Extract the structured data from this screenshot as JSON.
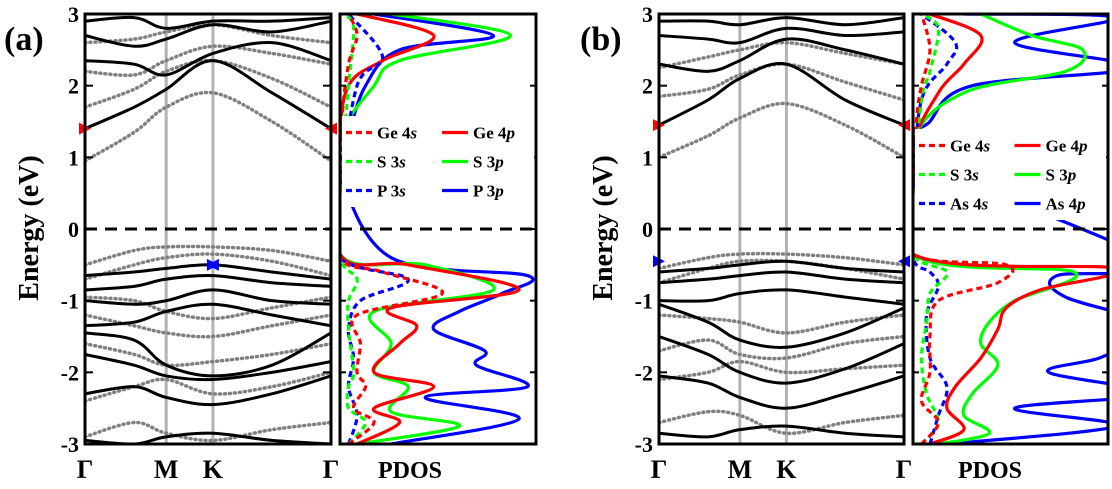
{
  "chart_data": [
    {
      "type": "line",
      "panel": "(a)",
      "ylabel": "Energy (eV)",
      "ylim": [
        -3,
        3
      ],
      "yticks": [
        "-3",
        "-2",
        "-1",
        "0",
        "1",
        "2",
        "3"
      ],
      "kpath": [
        "Γ",
        "M",
        "K",
        "Γ"
      ],
      "fermi_level": 0,
      "band_styles": {
        "solid": "#000000",
        "dotted": "#808080",
        "vbm_cbm_marker": "#ff0000",
        "vbm_marker": "#0000ff"
      },
      "solid_bands": [
        {
          "values": [
            -2.95,
            -3.0,
            -2.9,
            -2.85,
            -2.95,
            -3.0
          ]
        },
        {
          "values": [
            -2.3,
            -2.2,
            -2.35,
            -2.45,
            -2.3,
            -2.05
          ]
        },
        {
          "values": [
            -1.75,
            -1.9,
            -2.05,
            -2.1,
            -2.0,
            -1.85
          ]
        },
        {
          "values": [
            -1.45,
            -1.55,
            -1.9,
            -2.05,
            -1.9,
            -1.45
          ]
        },
        {
          "values": [
            -1.35,
            -1.3,
            -1.15,
            -1.05,
            -1.2,
            -1.35
          ]
        },
        {
          "values": [
            -1.0,
            -1.05,
            -1.0,
            -0.85,
            -1.0,
            -1.05
          ]
        },
        {
          "values": [
            -0.85,
            -0.8,
            -0.7,
            -0.65,
            -0.75,
            -0.8
          ]
        },
        {
          "values": [
            -0.65,
            -0.6,
            -0.55,
            -0.5,
            -0.6,
            -0.7
          ]
        },
        {
          "values": [
            1.4,
            1.7,
            1.95,
            2.35,
            1.9,
            1.4
          ]
        },
        {
          "values": [
            2.35,
            2.3,
            2.15,
            2.45,
            2.6,
            2.35
          ]
        },
        {
          "values": [
            2.7,
            2.55,
            2.65,
            2.85,
            2.75,
            2.9
          ]
        },
        {
          "values": [
            2.9,
            2.95,
            2.8,
            2.9,
            2.9,
            2.95
          ]
        }
      ],
      "dotted_bands": [
        {
          "values": [
            -2.9,
            -2.7,
            -2.85,
            -2.95,
            -2.8,
            -2.7
          ]
        },
        {
          "values": [
            -2.4,
            -2.2,
            -2.1,
            -2.3,
            -2.2,
            -2.0
          ]
        },
        {
          "values": [
            -1.6,
            -1.75,
            -1.9,
            -1.85,
            -1.75,
            -1.6
          ]
        },
        {
          "values": [
            -1.2,
            -1.35,
            -1.45,
            -1.5,
            -1.35,
            -1.2
          ]
        },
        {
          "values": [
            -0.95,
            -1.0,
            -1.15,
            -1.25,
            -1.1,
            -0.95
          ]
        },
        {
          "values": [
            -0.7,
            -0.5,
            -0.4,
            -0.35,
            -0.45,
            -0.65
          ]
        },
        {
          "values": [
            -0.5,
            -0.3,
            -0.25,
            -0.25,
            -0.3,
            -0.45
          ]
        },
        {
          "values": [
            0.95,
            1.35,
            1.7,
            1.9,
            1.5,
            0.95
          ]
        },
        {
          "values": [
            1.7,
            1.95,
            2.2,
            2.35,
            2.1,
            1.7
          ]
        },
        {
          "values": [
            2.2,
            2.15,
            2.35,
            2.55,
            2.45,
            2.3
          ]
        },
        {
          "values": [
            2.6,
            2.65,
            2.75,
            2.85,
            2.7,
            2.6
          ]
        }
      ],
      "cbm": {
        "k": "Γ",
        "energy": 1.4
      },
      "vbm": {
        "k": "K",
        "energy": -0.5
      }
    },
    {
      "type": "line",
      "panel": "(a)",
      "xlabel": "PDOS",
      "ylim": [
        -3,
        3
      ],
      "legend": [
        {
          "label_pre": "Ge 4",
          "label_italic": "s",
          "color": "#ff0000",
          "dashed": true
        },
        {
          "label_pre": "Ge 4",
          "label_italic": "p",
          "color": "#ff0000",
          "dashed": false
        },
        {
          "label_pre": "S 3",
          "label_italic": "s",
          "color": "#00ff00",
          "dashed": true
        },
        {
          "label_pre": "S 3",
          "label_italic": "p",
          "color": "#00ff00",
          "dashed": false
        },
        {
          "label_pre": "P 3",
          "label_italic": "s",
          "color": "#0000ff",
          "dashed": true
        },
        {
          "label_pre": "P 3",
          "label_italic": "p",
          "color": "#0000ff",
          "dashed": false
        }
      ],
      "series": [
        {
          "name": "Ge 4s",
          "energy": [
            -3,
            -2.7,
            -2.5,
            -2.2,
            -2.0,
            -1.6,
            -1.2,
            -0.9,
            -0.6,
            -0.4,
            0.5,
            1.5,
            2.3,
            2.7,
            3
          ],
          "dos": [
            0.05,
            0.2,
            0.08,
            0.15,
            0.1,
            0.12,
            0.1,
            0.6,
            0.25,
            0.0,
            0.0,
            0.01,
            0.05,
            0.1,
            0.05
          ]
        },
        {
          "name": "Ge 4p",
          "energy": [
            -3,
            -2.7,
            -2.5,
            -2.2,
            -2.0,
            -1.6,
            -1.35,
            -1.1,
            -0.85,
            -0.5,
            -0.35,
            1.2,
            2.0,
            2.35,
            2.7,
            3
          ],
          "dos": [
            0.1,
            0.35,
            0.2,
            0.55,
            0.2,
            0.35,
            0.45,
            0.3,
            1.05,
            0.4,
            0.0,
            0.0,
            0.05,
            0.25,
            0.55,
            0.1
          ]
        },
        {
          "name": "S 3s",
          "energy": [
            -3,
            -2.7,
            -2.5,
            -2.2,
            -2.0,
            -1.4,
            -1.0,
            -0.7,
            -0.4,
            0.5,
            2.0,
            2.8,
            3
          ],
          "dos": [
            0.05,
            0.15,
            0.05,
            0.05,
            0.08,
            0.05,
            0.05,
            0.1,
            0.0,
            0.0,
            0.05,
            0.08,
            0.02
          ]
        },
        {
          "name": "S 3p",
          "energy": [
            -3,
            -2.75,
            -2.55,
            -2.2,
            -2.0,
            -1.6,
            -1.15,
            -0.85,
            -0.5,
            -0.35,
            1.2,
            2.0,
            2.35,
            2.7,
            3
          ],
          "dos": [
            0.1,
            0.7,
            0.3,
            0.4,
            0.2,
            0.3,
            0.2,
            0.9,
            0.5,
            0.0,
            0.0,
            0.2,
            0.35,
            1.0,
            0.3
          ]
        },
        {
          "name": "P 3s",
          "energy": [
            -3,
            -2.6,
            -2.2,
            -1.8,
            -1.4,
            -1.0,
            -0.7,
            -0.4,
            0.5,
            2.0,
            2.4,
            3
          ],
          "dos": [
            0.05,
            0.1,
            0.05,
            0.08,
            0.05,
            0.12,
            0.4,
            0.0,
            0.0,
            0.1,
            0.25,
            0.05
          ]
        },
        {
          "name": "P 3p",
          "energy": [
            -3,
            -2.65,
            -2.35,
            -2.2,
            -1.9,
            -1.7,
            -1.4,
            -1.15,
            -0.9,
            -0.65,
            -0.4,
            0.8,
            1.3,
            2.0,
            2.5,
            2.7,
            3
          ],
          "dos": [
            0.3,
            1.05,
            0.5,
            1.1,
            0.8,
            0.85,
            0.55,
            0.7,
            0.95,
            1.1,
            0.3,
            0.0,
            0.05,
            0.15,
            0.35,
            0.9,
            0.2
          ]
        }
      ]
    },
    {
      "type": "line",
      "panel": "(b)",
      "ylabel": "Energy (eV)",
      "ylim": [
        -3,
        3
      ],
      "yticks": [
        "-3",
        "-2",
        "-1",
        "0",
        "1",
        "2",
        "3"
      ],
      "kpath": [
        "Γ",
        "M",
        "K",
        "Γ"
      ],
      "fermi_level": 0,
      "band_styles": {
        "solid": "#000000",
        "dotted": "#808080",
        "vbm_cbm_marker": "#ff0000",
        "vbm_marker": "#0000ff"
      },
      "solid_bands": [
        {
          "values": [
            -2.85,
            -2.9,
            -2.8,
            -2.75,
            -2.85,
            -2.9
          ]
        },
        {
          "values": [
            -2.05,
            -2.15,
            -2.35,
            -2.5,
            -2.3,
            -2.05
          ]
        },
        {
          "values": [
            -1.5,
            -1.75,
            -2.0,
            -2.15,
            -1.95,
            -1.6
          ]
        },
        {
          "values": [
            -1.05,
            -1.3,
            -1.55,
            -1.65,
            -1.45,
            -1.1
          ]
        },
        {
          "values": [
            -1.0,
            -1.0,
            -0.9,
            -0.85,
            -0.95,
            -1.05
          ]
        },
        {
          "values": [
            -0.75,
            -0.7,
            -0.65,
            -0.6,
            -0.7,
            -0.75
          ]
        },
        {
          "values": [
            -0.6,
            -0.55,
            -0.5,
            -0.45,
            -0.55,
            -0.6
          ]
        },
        {
          "values": [
            1.45,
            1.8,
            2.1,
            2.3,
            1.8,
            1.45
          ]
        },
        {
          "values": [
            2.3,
            2.2,
            2.35,
            2.65,
            2.5,
            2.3
          ]
        },
        {
          "values": [
            2.7,
            2.65,
            2.6,
            2.8,
            2.7,
            2.75
          ]
        },
        {
          "values": [
            2.9,
            2.9,
            2.85,
            2.95,
            2.85,
            2.95
          ]
        }
      ],
      "dotted_bands": [
        {
          "values": [
            -2.7,
            -2.55,
            -2.6,
            -2.85,
            -2.7,
            -2.6
          ]
        },
        {
          "values": [
            -2.1,
            -2.0,
            -1.85,
            -2.0,
            -1.95,
            -1.9
          ]
        },
        {
          "values": [
            -1.7,
            -1.55,
            -1.75,
            -1.8,
            -1.6,
            -1.5
          ]
        },
        {
          "values": [
            -1.2,
            -1.25,
            -1.3,
            -1.45,
            -1.3,
            -1.2
          ]
        },
        {
          "values": [
            -0.75,
            -0.55,
            -0.45,
            -0.45,
            -0.55,
            -0.7
          ]
        },
        {
          "values": [
            -0.55,
            -0.4,
            -0.35,
            -0.35,
            -0.4,
            -0.5
          ]
        },
        {
          "values": [
            1.0,
            1.3,
            1.55,
            1.75,
            1.45,
            1.0
          ]
        },
        {
          "values": [
            1.85,
            1.95,
            2.15,
            2.3,
            2.05,
            1.8
          ]
        },
        {
          "values": [
            2.25,
            2.4,
            2.5,
            2.6,
            2.45,
            2.3
          ]
        }
      ],
      "cbm": {
        "k": "Γ",
        "energy": 1.45
      },
      "vbm": {
        "k": "Γ",
        "energy": -0.45
      }
    },
    {
      "type": "line",
      "panel": "(b)",
      "xlabel": "PDOS",
      "ylim": [
        -3,
        3
      ],
      "legend": [
        {
          "label_pre": "Ge 4",
          "label_italic": "s",
          "color": "#ff0000",
          "dashed": true
        },
        {
          "label_pre": "Ge 4",
          "label_italic": "p",
          "color": "#ff0000",
          "dashed": false
        },
        {
          "label_pre": "S 3",
          "label_italic": "s",
          "color": "#00ff00",
          "dashed": true
        },
        {
          "label_pre": "S 3",
          "label_italic": "p",
          "color": "#00ff00",
          "dashed": false
        },
        {
          "label_pre": "As 4",
          "label_italic": "s",
          "color": "#0000ff",
          "dashed": true
        },
        {
          "label_pre": "As 4",
          "label_italic": "p",
          "color": "#0000ff",
          "dashed": false
        }
      ],
      "series": [
        {
          "name": "Ge 4s",
          "energy": [
            -3,
            -2.7,
            -2.4,
            -2.0,
            -1.5,
            -1.0,
            -0.75,
            -0.5,
            -0.35,
            0.5,
            1.5,
            2.0,
            2.5,
            3
          ],
          "dos": [
            0.05,
            0.15,
            0.05,
            0.1,
            0.1,
            0.15,
            0.5,
            0.55,
            0.0,
            0.0,
            0.02,
            0.05,
            0.1,
            0.05
          ]
        },
        {
          "name": "Ge 4p",
          "energy": [
            -3,
            -2.8,
            -2.5,
            -2.2,
            -1.8,
            -1.4,
            -1.1,
            -0.85,
            -0.55,
            -0.35,
            1.1,
            1.9,
            2.3,
            2.7,
            3
          ],
          "dos": [
            0.1,
            0.3,
            0.2,
            0.25,
            0.4,
            0.5,
            0.55,
            0.75,
            1.2,
            0.0,
            0.0,
            0.15,
            0.3,
            0.4,
            0.1
          ]
        },
        {
          "name": "S 3s",
          "energy": [
            -3,
            -2.7,
            -2.3,
            -1.8,
            -1.3,
            -0.9,
            -0.6,
            -0.35,
            0.5,
            1.8,
            2.2,
            2.8,
            3
          ],
          "dos": [
            0.05,
            0.15,
            0.08,
            0.05,
            0.08,
            0.1,
            0.2,
            0.0,
            0.0,
            0.05,
            0.1,
            0.15,
            0.05
          ]
        },
        {
          "name": "S 3p",
          "energy": [
            -3,
            -2.85,
            -2.6,
            -2.3,
            -1.9,
            -1.6,
            -1.3,
            -1.0,
            -0.6,
            -0.35,
            1.2,
            1.9,
            2.2,
            2.5,
            2.7,
            3
          ],
          "dos": [
            0.15,
            0.45,
            0.3,
            0.35,
            0.5,
            0.4,
            0.45,
            0.6,
            0.95,
            0.0,
            0.0,
            0.3,
            0.9,
            1.0,
            0.7,
            0.4
          ]
        },
        {
          "name": "As 4s",
          "energy": [
            -3,
            -2.6,
            -2.2,
            -1.8,
            -1.2,
            -0.8,
            -0.6,
            -0.4,
            0.5,
            1.8,
            2.3,
            2.6,
            3
          ],
          "dos": [
            0.1,
            0.15,
            0.2,
            0.1,
            0.08,
            0.15,
            0.1,
            0.0,
            0.0,
            0.05,
            0.2,
            0.25,
            0.05
          ]
        },
        {
          "name": "As 4p",
          "energy": [
            -3,
            -2.75,
            -2.5,
            -2.3,
            -2.0,
            -1.8,
            -1.5,
            -1.3,
            -0.95,
            -0.65,
            -0.45,
            1.0,
            1.5,
            2.0,
            2.25,
            2.6,
            2.95,
            3
          ],
          "dos": [
            0.2,
            1.2,
            0.6,
            1.4,
            0.8,
            1.1,
            1.35,
            1.4,
            0.9,
            0.85,
            1.4,
            0.0,
            0.1,
            0.35,
            1.3,
            0.6,
            1.2,
            0.3
          ]
        }
      ]
    }
  ]
}
